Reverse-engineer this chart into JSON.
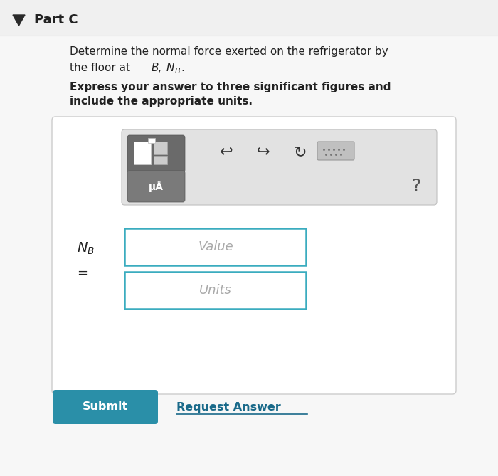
{
  "bg_color": "#f7f7f7",
  "header_bg": "#f0f0f0",
  "part_c_label": "Part C",
  "triangle_color": "#2a2a2a",
  "description_line1": "Determine the normal force exerted on the refrigerator by",
  "description_line2": "the floor at ",
  "bold_line1": "Express your answer to three significant figures and",
  "bold_line2": "include the appropriate units.",
  "input_box_color": "#ffffff",
  "input_border_color": "#3aacbf",
  "value_placeholder": "Value",
  "units_placeholder": "Units",
  "submit_bg": "#2a8fa8",
  "submit_text": "Submit",
  "submit_text_color": "#ffffff",
  "request_answer_text": "Request Answer",
  "request_answer_color": "#1a6a8a",
  "question_mark_color": "#555555",
  "outer_box_bg": "#ffffff",
  "outer_box_border": "#cccccc",
  "toolbar_bg": "#e2e2e2",
  "icon_bg": "#6a6a6a",
  "mua_bg": "#7a7a7a",
  "text_color": "#222222"
}
